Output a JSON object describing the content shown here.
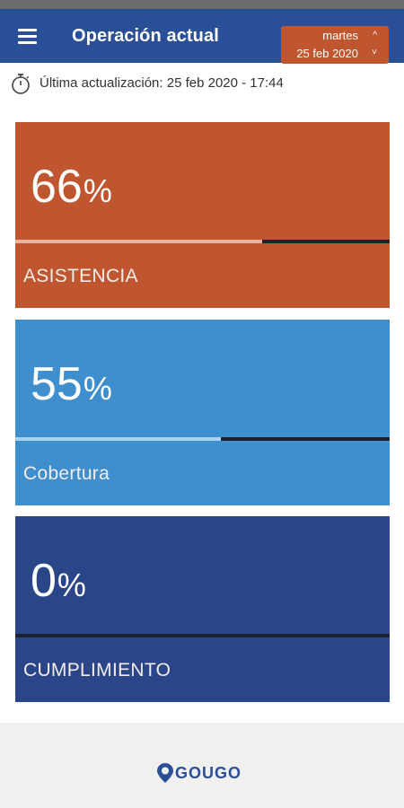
{
  "header": {
    "title": "Operación actual",
    "date_day": "martes",
    "date_date": "25 feb 2020",
    "chevron_up": "^",
    "chevron_down": "˅"
  },
  "update": {
    "text": "Última actualización: 25 feb 2020 - 17:44"
  },
  "cards": [
    {
      "value": "66",
      "unit": "%",
      "label": "ASISTENCIA",
      "progress": 0.66,
      "color": "#c0562f",
      "fill_color": "#e9b29a"
    },
    {
      "value": "55",
      "unit": "%",
      "label": "Cobertura",
      "progress": 0.55,
      "color": "#3f8fce",
      "fill_color": "#a9d2f0"
    },
    {
      "value": "0",
      "unit": "%",
      "label": "CUMPLIMIENTO",
      "progress": 0.0,
      "color": "#2a4688",
      "fill_color": "#8fa8d8"
    }
  ],
  "footer": {
    "logo_text": "GOUGO"
  },
  "colors": {
    "appbar": "#2a4f97",
    "accent": "#c0562f"
  }
}
